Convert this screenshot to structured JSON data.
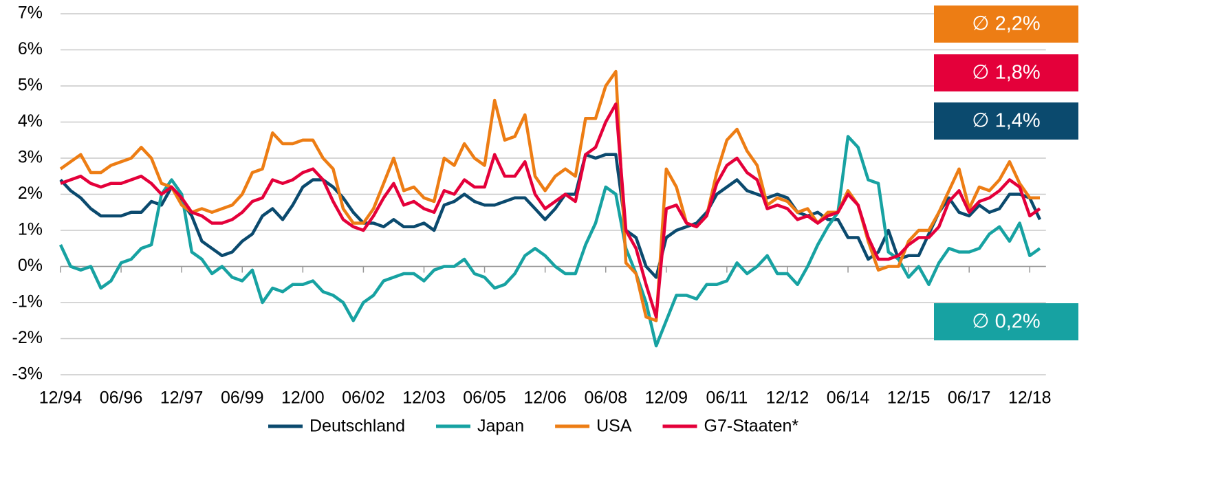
{
  "chart_data": {
    "type": "line",
    "categories": [
      "12/94",
      null,
      null,
      null,
      null,
      null,
      "06/96",
      null,
      null,
      null,
      null,
      null,
      "12/97",
      null,
      null,
      null,
      null,
      null,
      "06/99",
      null,
      null,
      null,
      null,
      null,
      "12/00",
      null,
      null,
      null,
      null,
      null,
      "06/02",
      null,
      null,
      null,
      null,
      null,
      "12/03",
      null,
      null,
      null,
      null,
      null,
      "06/05",
      null,
      null,
      null,
      null,
      null,
      "12/06",
      null,
      null,
      null,
      null,
      null,
      "06/08",
      null,
      null,
      null,
      null,
      null,
      "12/09",
      null,
      null,
      null,
      null,
      null,
      "06/11",
      null,
      null,
      null,
      null,
      null,
      "12/12",
      null,
      null,
      null,
      null,
      null,
      "06/14",
      null,
      null,
      null,
      null,
      null,
      "12/15",
      null,
      null,
      null,
      null,
      null,
      "06/17",
      null,
      null,
      null,
      null,
      null,
      "12/18",
      null
    ],
    "ylim": [
      -3,
      7
    ],
    "yticks": [
      {
        "value": -3,
        "label": "-3%"
      },
      {
        "value": -2,
        "label": "-2%"
      },
      {
        "value": -1,
        "label": "-1%"
      },
      {
        "value": 0,
        "label": "0%"
      },
      {
        "value": 1,
        "label": "1%"
      },
      {
        "value": 2,
        "label": "2%"
      },
      {
        "value": 3,
        "label": "3%"
      },
      {
        "value": 4,
        "label": "4%"
      },
      {
        "value": 5,
        "label": "5%"
      },
      {
        "value": 6,
        "label": "6%"
      },
      {
        "value": 7,
        "label": "7%"
      }
    ],
    "grid": true,
    "legend": "bottom",
    "series": [
      {
        "name": "Deutschland",
        "color": "#0b4a6e",
        "values": [
          2.4,
          2.1,
          1.9,
          1.6,
          1.4,
          1.4,
          1.4,
          1.5,
          1.5,
          1.8,
          1.7,
          2.2,
          1.8,
          1.4,
          0.7,
          0.5,
          0.3,
          0.4,
          0.7,
          0.9,
          1.4,
          1.6,
          1.3,
          1.7,
          2.2,
          2.4,
          2.4,
          2.2,
          1.9,
          1.5,
          1.2,
          1.2,
          1.1,
          1.3,
          1.1,
          1.1,
          1.2,
          1.0,
          1.7,
          1.8,
          2.0,
          1.8,
          1.7,
          1.7,
          1.8,
          1.9,
          1.9,
          1.6,
          1.3,
          1.6,
          2.0,
          2.0,
          3.1,
          3.0,
          3.1,
          3.1,
          1.0,
          0.8,
          0.0,
          -0.3,
          0.8,
          1.0,
          1.1,
          1.2,
          1.5,
          2.0,
          2.2,
          2.4,
          2.1,
          2.0,
          1.9,
          2.0,
          1.9,
          1.5,
          1.4,
          1.5,
          1.3,
          1.3,
          0.8,
          0.8,
          0.2,
          0.4,
          1.0,
          0.2,
          0.3,
          0.3,
          0.9,
          1.5,
          1.9,
          1.5,
          1.4,
          1.7,
          1.5,
          1.6,
          2.0,
          2.0,
          1.9,
          1.3
        ]
      },
      {
        "name": "Japan",
        "color": "#17a2a2",
        "values": [
          0.6,
          0.0,
          -0.1,
          0.0,
          -0.6,
          -0.4,
          0.1,
          0.2,
          0.5,
          0.6,
          2.0,
          2.4,
          2.0,
          0.4,
          0.2,
          -0.2,
          0.0,
          -0.3,
          -0.4,
          -0.1,
          -1.0,
          -0.6,
          -0.7,
          -0.5,
          -0.5,
          -0.4,
          -0.7,
          -0.8,
          -1.0,
          -1.5,
          -1.0,
          -0.8,
          -0.4,
          -0.3,
          -0.2,
          -0.2,
          -0.4,
          -0.1,
          0.0,
          0.0,
          0.2,
          -0.2,
          -0.3,
          -0.6,
          -0.5,
          -0.2,
          0.3,
          0.5,
          0.3,
          0.0,
          -0.2,
          -0.2,
          0.6,
          1.2,
          2.2,
          2.0,
          0.5,
          -0.2,
          -1.0,
          -2.2,
          -1.5,
          -0.8,
          -0.8,
          -0.9,
          -0.5,
          -0.5,
          -0.4,
          0.1,
          -0.2,
          0.0,
          0.3,
          -0.2,
          -0.2,
          -0.5,
          0.0,
          0.6,
          1.1,
          1.5,
          3.6,
          3.3,
          2.4,
          2.3,
          0.4,
          0.2,
          -0.3,
          0.0,
          -0.5,
          0.1,
          0.5,
          0.4,
          0.4,
          0.5,
          0.9,
          1.1,
          0.7,
          1.2,
          0.3,
          0.5
        ]
      },
      {
        "name": "USA",
        "color": "#ed7d14",
        "values": [
          2.7,
          2.9,
          3.1,
          2.6,
          2.6,
          2.8,
          2.9,
          3.0,
          3.3,
          3.0,
          2.3,
          2.2,
          1.7,
          1.5,
          1.6,
          1.5,
          1.6,
          1.7,
          2.0,
          2.6,
          2.7,
          3.7,
          3.4,
          3.4,
          3.5,
          3.5,
          3.0,
          2.7,
          1.6,
          1.2,
          1.2,
          1.6,
          2.3,
          3.0,
          2.1,
          2.2,
          1.9,
          1.8,
          3.0,
          2.8,
          3.4,
          3.0,
          2.8,
          4.6,
          3.5,
          3.6,
          4.2,
          2.5,
          2.1,
          2.5,
          2.7,
          2.5,
          4.1,
          4.1,
          5.0,
          5.4,
          0.1,
          -0.2,
          -1.4,
          -1.5,
          2.7,
          2.2,
          1.2,
          1.1,
          1.4,
          2.6,
          3.5,
          3.8,
          3.2,
          2.8,
          1.7,
          1.9,
          1.8,
          1.5,
          1.6,
          1.2,
          1.5,
          1.5,
          2.1,
          1.7,
          0.7,
          -0.1,
          0.0,
          0.0,
          0.7,
          1.0,
          1.0,
          1.5,
          2.1,
          2.7,
          1.6,
          2.2,
          2.1,
          2.4,
          2.9,
          2.3,
          1.9,
          1.9
        ]
      },
      {
        "name": "G7-Staaten*",
        "color": "#e4003a",
        "values": [
          2.3,
          2.4,
          2.5,
          2.3,
          2.2,
          2.3,
          2.3,
          2.4,
          2.5,
          2.3,
          2.0,
          2.2,
          1.9,
          1.5,
          1.4,
          1.2,
          1.2,
          1.3,
          1.5,
          1.8,
          1.9,
          2.4,
          2.3,
          2.4,
          2.6,
          2.7,
          2.4,
          1.8,
          1.3,
          1.1,
          1.0,
          1.4,
          1.9,
          2.3,
          1.7,
          1.8,
          1.6,
          1.5,
          2.1,
          2.0,
          2.4,
          2.2,
          2.2,
          3.1,
          2.5,
          2.5,
          2.9,
          2.0,
          1.6,
          1.8,
          2.0,
          1.8,
          3.1,
          3.3,
          4.0,
          4.5,
          1.0,
          0.5,
          -0.5,
          -1.4,
          1.6,
          1.7,
          1.2,
          1.1,
          1.4,
          2.3,
          2.8,
          3.0,
          2.6,
          2.4,
          1.6,
          1.7,
          1.6,
          1.3,
          1.4,
          1.2,
          1.4,
          1.5,
          2.0,
          1.7,
          0.8,
          0.2,
          0.2,
          0.3,
          0.6,
          0.8,
          0.8,
          1.1,
          1.8,
          2.1,
          1.5,
          1.8,
          1.9,
          2.1,
          2.4,
          2.2,
          1.4,
          1.6
        ]
      }
    ],
    "annotations": [
      {
        "text": "∅ 2,2%",
        "color": "#ed7d14"
      },
      {
        "text": "∅ 1,8%",
        "color": "#e4003a"
      },
      {
        "text": "∅ 1,4%",
        "color": "#0b4a6e"
      },
      {
        "text": "∅ 0,2%",
        "color": "#17a2a2"
      }
    ]
  }
}
